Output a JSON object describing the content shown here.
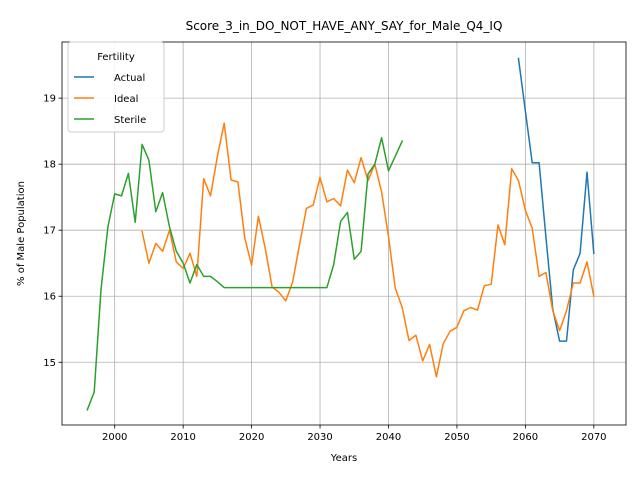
{
  "chart_data": {
    "type": "line",
    "title": "Score_3_in_DO_NOT_HAVE_ANY_SAY_for_Male_Q4_IQ",
    "xlabel": "Years",
    "ylabel": "% of Male Population",
    "xlim": [
      1992.3,
      2074.7
    ],
    "ylim": [
      14.05,
      19.85
    ],
    "xticks": [
      2000,
      2010,
      2020,
      2030,
      2040,
      2050,
      2060,
      2070
    ],
    "yticks": [
      15,
      16,
      17,
      18,
      19
    ],
    "grid": true,
    "legend": {
      "title": "Fertility",
      "position": "top-left"
    },
    "series": [
      {
        "name": "Actual",
        "color": "#1f77b4",
        "x": [
          2059,
          2060,
          2061,
          2062,
          2063,
          2064,
          2065,
          2066,
          2067,
          2068,
          2069,
          2070
        ],
        "y": [
          19.6,
          18.8,
          18.02,
          18.02,
          16.9,
          15.8,
          15.32,
          15.32,
          16.4,
          16.65,
          17.88,
          16.65
        ]
      },
      {
        "name": "Ideal",
        "color": "#ff7f0e",
        "x": [
          2004,
          2005,
          2006,
          2007,
          2008,
          2009,
          2010,
          2011,
          2012,
          2013,
          2014,
          2015,
          2016,
          2017,
          2018,
          2019,
          2020,
          2021,
          2022,
          2023,
          2024,
          2025,
          2026,
          2027,
          2028,
          2029,
          2030,
          2031,
          2032,
          2033,
          2034,
          2035,
          2036,
          2037,
          2038,
          2039,
          2040,
          2041,
          2042,
          2043,
          2044,
          2045,
          2046,
          2047,
          2048,
          2049,
          2050,
          2051,
          2052,
          2053,
          2054,
          2055,
          2056,
          2057,
          2058,
          2059,
          2060,
          2061,
          2062,
          2063,
          2064,
          2065,
          2066,
          2067,
          2068,
          2069,
          2070
        ],
        "y": [
          16.98,
          16.5,
          16.8,
          16.68,
          17.0,
          16.52,
          16.42,
          16.65,
          16.3,
          17.78,
          17.52,
          18.12,
          18.62,
          17.76,
          17.73,
          16.88,
          16.47,
          17.21,
          16.72,
          16.14,
          16.06,
          15.93,
          16.22,
          16.78,
          17.33,
          17.38,
          17.8,
          17.43,
          17.48,
          17.37,
          17.91,
          17.72,
          18.1,
          17.75,
          18.0,
          17.58,
          16.9,
          16.12,
          15.83,
          15.33,
          15.41,
          15.02,
          15.27,
          14.78,
          15.28,
          15.47,
          15.53,
          15.78,
          15.83,
          15.79,
          16.16,
          16.18,
          17.08,
          16.78,
          17.93,
          17.75,
          17.3,
          17.03,
          16.3,
          16.36,
          15.78,
          15.48,
          15.78,
          16.2,
          16.2,
          16.52,
          16.0
        ]
      },
      {
        "name": "Sterile",
        "color": "#2ca02c",
        "x": [
          1996,
          1997,
          1998,
          1999,
          2000,
          2001,
          2002,
          2003,
          2004,
          2005,
          2006,
          2007,
          2008,
          2009,
          2010,
          2011,
          2012,
          2013,
          2014,
          2015,
          2016,
          2017,
          2018,
          2019,
          2020,
          2021,
          2022,
          2023,
          2024,
          2025,
          2026,
          2027,
          2028,
          2029,
          2030,
          2031,
          2032,
          2033,
          2034,
          2035,
          2036,
          2037,
          2038,
          2039,
          2040,
          2041,
          2042
        ],
        "y": [
          14.28,
          14.55,
          16.1,
          17.05,
          17.55,
          17.52,
          17.86,
          17.12,
          18.3,
          18.06,
          17.28,
          17.57,
          17.05,
          16.68,
          16.5,
          16.2,
          16.48,
          16.3,
          16.3,
          16.22,
          16.13,
          16.13,
          16.13,
          16.13,
          16.13,
          16.13,
          16.13,
          16.13,
          16.13,
          16.13,
          16.13,
          16.13,
          16.13,
          16.13,
          16.13,
          16.13,
          16.48,
          17.13,
          17.27,
          16.56,
          16.68,
          17.85,
          18.0,
          18.4,
          17.9,
          18.12,
          18.35
        ]
      }
    ]
  }
}
